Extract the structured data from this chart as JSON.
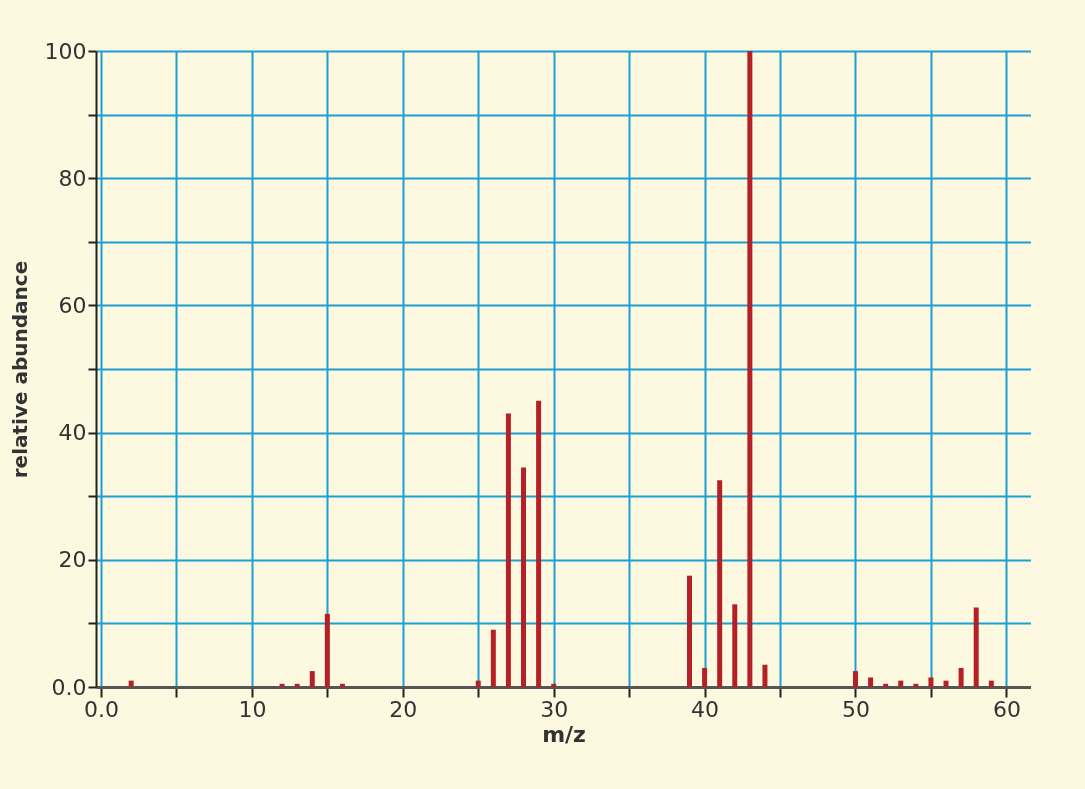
{
  "chart_data": {
    "type": "bar",
    "xlabel": "m/z",
    "ylabel": "relative abundance",
    "x": [
      2,
      12,
      13,
      14,
      15,
      16,
      25,
      26,
      27,
      28,
      29,
      30,
      39,
      40,
      41,
      42,
      43,
      44,
      50,
      51,
      52,
      53,
      54,
      55,
      56,
      57,
      58,
      59
    ],
    "values": [
      1,
      0.5,
      0.5,
      2.5,
      11.5,
      0.5,
      1,
      9,
      43,
      34.5,
      45,
      0.5,
      17.5,
      3,
      32.5,
      13,
      100,
      3.5,
      2.5,
      1.5,
      0.5,
      1,
      0.5,
      1.5,
      1,
      3,
      12.5,
      1
    ],
    "color": "#b32127",
    "xlim": [
      0,
      61.3
    ],
    "xticks": [
      {
        "value": 0,
        "label": "0.0"
      },
      {
        "value": 5,
        "label": null
      },
      10,
      {
        "value": 15,
        "label": null
      },
      20,
      {
        "value": 25,
        "label": null
      },
      30,
      {
        "value": 35,
        "label": null
      },
      40,
      {
        "value": 45,
        "label": null
      },
      50,
      {
        "value": 55,
        "label": null
      },
      60
    ],
    "ylim": [
      0,
      100
    ],
    "yticks": [
      {
        "value": 0,
        "label": "0.0"
      },
      {
        "value": 10,
        "label": null
      },
      20,
      {
        "value": 30,
        "label": null
      },
      40,
      {
        "value": 50,
        "label": null
      },
      60,
      {
        "value": 70,
        "label": null
      },
      80,
      {
        "value": 90,
        "label": null
      },
      100
    ],
    "grid": true
  }
}
